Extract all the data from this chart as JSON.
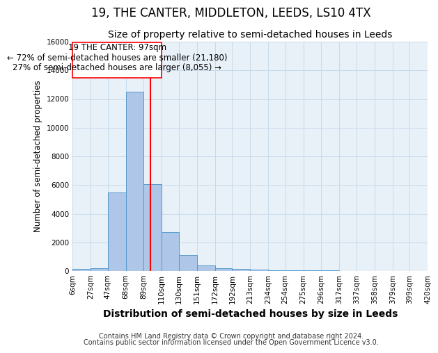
{
  "title": "19, THE CANTER, MIDDLETON, LEEDS, LS10 4TX",
  "subtitle": "Size of property relative to semi-detached houses in Leeds",
  "xlabel": "Distribution of semi-detached houses by size in Leeds",
  "ylabel": "Number of semi-detached properties",
  "footnote1": "Contains HM Land Registry data © Crown copyright and database right 2024.",
  "footnote2": "Contains public sector information licensed under the Open Government Licence v3.0.",
  "annotation_title": "19 THE CANTER: 97sqm",
  "annotation_line1": "← 72% of semi-detached houses are smaller (21,180)",
  "annotation_line2": "27% of semi-detached houses are larger (8,055) →",
  "bar_edges": [
    6,
    27,
    47,
    68,
    89,
    110,
    130,
    151,
    172,
    192,
    213,
    234,
    254,
    275,
    296,
    317,
    337,
    358,
    379,
    399,
    420
  ],
  "bar_heights": [
    160,
    200,
    5500,
    12500,
    6050,
    2700,
    1100,
    400,
    200,
    130,
    100,
    60,
    50,
    40,
    30,
    20,
    15,
    10,
    10,
    5
  ],
  "bar_color": "#aec6e8",
  "bar_edge_color": "#5599cc",
  "red_line_x": 97,
  "ylim": [
    0,
    16000
  ],
  "yticks": [
    0,
    2000,
    4000,
    6000,
    8000,
    10000,
    12000,
    14000,
    16000
  ],
  "title_fontsize": 12,
  "subtitle_fontsize": 10,
  "xlabel_fontsize": 10,
  "ylabel_fontsize": 8.5,
  "tick_fontsize": 7.5,
  "annotation_fontsize": 8.5,
  "footnote_fontsize": 7,
  "background_color": "#ffffff",
  "grid_color": "#c8daea"
}
